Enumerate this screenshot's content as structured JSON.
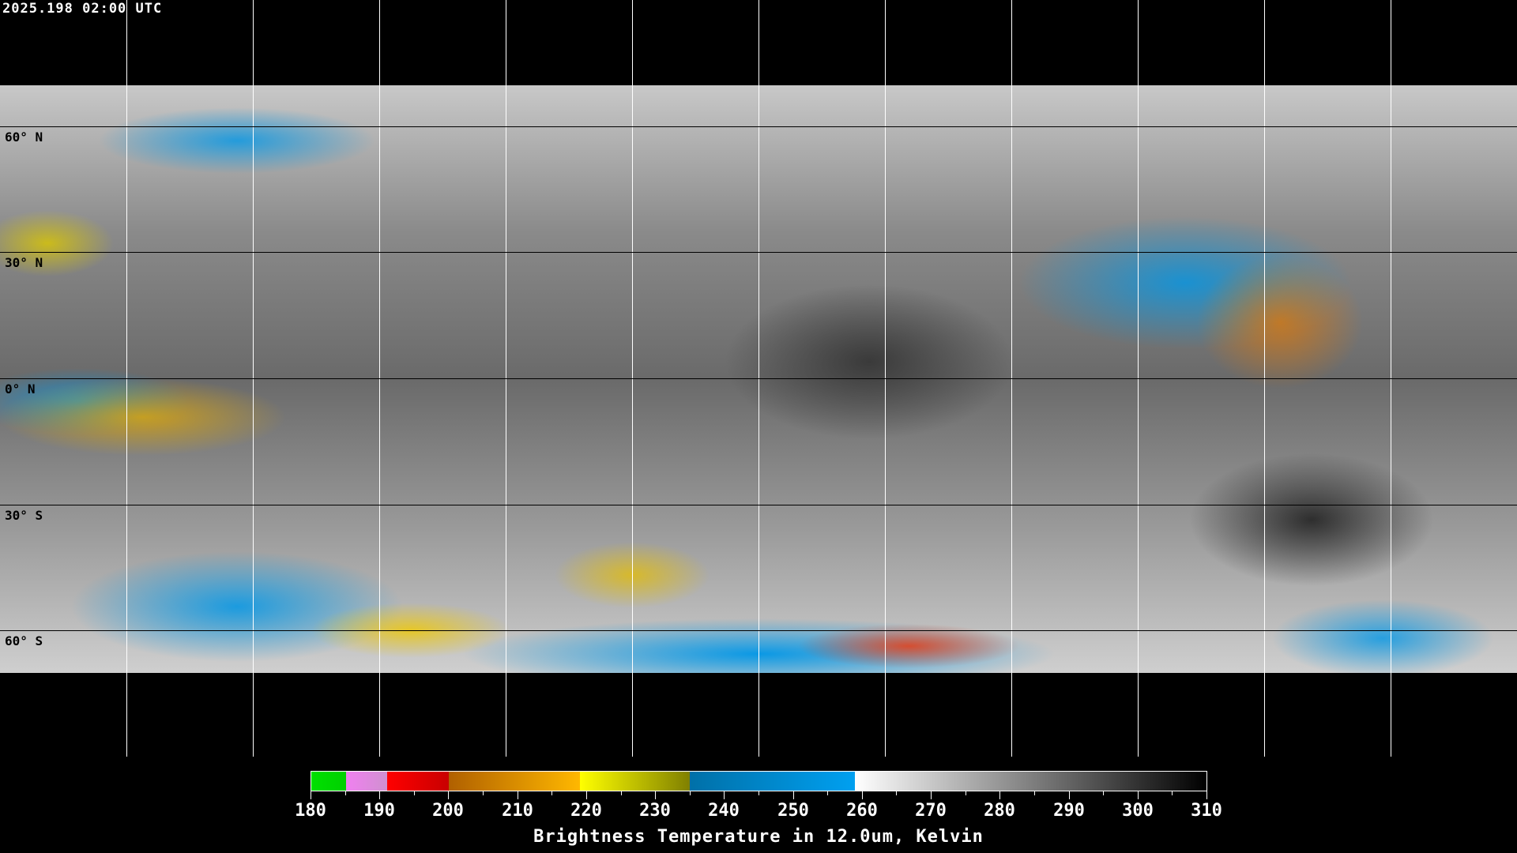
{
  "header": {
    "timestamp": "2025.198 02:00 UTC"
  },
  "map": {
    "projection": "equirectangular",
    "grid_longitudes": [
      -150,
      -120,
      -90,
      -60,
      -30,
      0,
      30,
      60,
      90,
      120,
      150
    ],
    "grid_latitudes": [
      60,
      30,
      0,
      -30,
      -60
    ],
    "lat_labels": [
      "60° N",
      "30° N",
      "0° N",
      "30° S",
      "60° S"
    ]
  },
  "colorbar": {
    "title": "Brightness Temperature in 12.0um, Kelvin",
    "min": 180,
    "max": 310,
    "tick_labels": [
      "180",
      "190",
      "200",
      "210",
      "220",
      "230",
      "240",
      "250",
      "260",
      "270",
      "280",
      "290",
      "300",
      "310"
    ],
    "segments": [
      {
        "from": 180,
        "to": 185,
        "colors": [
          "#00e000",
          "#00d000"
        ]
      },
      {
        "from": 185,
        "to": 191,
        "colors": [
          "#f080f0",
          "#d090d0"
        ]
      },
      {
        "from": 191,
        "to": 200,
        "colors": [
          "#ff0000",
          "#c80000"
        ]
      },
      {
        "from": 200,
        "to": 219,
        "colors": [
          "#b06000",
          "#ffb800"
        ]
      },
      {
        "from": 219,
        "to": 235,
        "colors": [
          "#ffff00",
          "#808000"
        ]
      },
      {
        "from": 235,
        "to": 259,
        "colors": [
          "#0070a8",
          "#00a0f0"
        ]
      },
      {
        "from": 259,
        "to": 310,
        "colors": [
          "#ffffff",
          "#000000"
        ]
      }
    ]
  }
}
